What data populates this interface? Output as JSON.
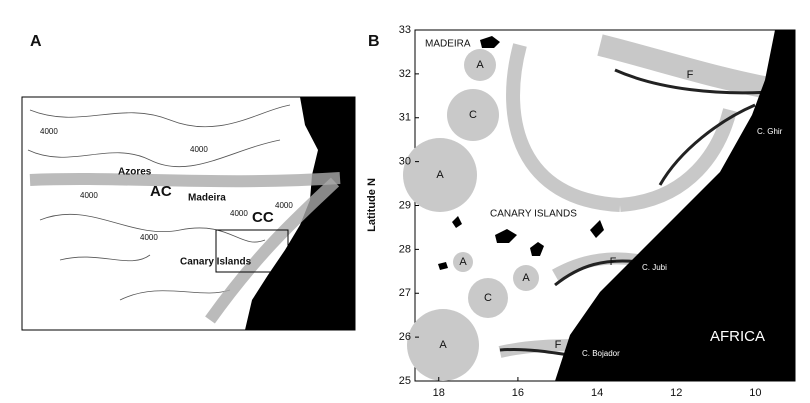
{
  "panel_a": {
    "label": "A",
    "labels": {
      "azores": "Azores",
      "ac": "AC",
      "madeira": "Madeira",
      "cc": "CC",
      "canary": "Canary Islands"
    },
    "contour_labels": [
      "4000",
      "4000",
      "4000",
      "4000",
      "4000",
      "4000"
    ]
  },
  "panel_b": {
    "label": "B",
    "ylabel": "Latitude N",
    "xlim": [
      18.6,
      9.0
    ],
    "ylim": [
      25,
      33
    ],
    "xticks": [
      18,
      16,
      14,
      12,
      10
    ],
    "yticks": [
      25,
      26,
      27,
      28,
      29,
      30,
      31,
      32,
      33
    ],
    "labels": {
      "madeira": "MADEIRA",
      "canary": "CANARY ISLANDS",
      "ghir": "C. Ghir",
      "jubi": "C. Jubi",
      "bojador": "C. Bojador",
      "africa": "AFRICA"
    },
    "eddies": [
      "A",
      "C",
      "A",
      "A",
      "A",
      "C",
      "A"
    ],
    "fronts": [
      "F",
      "F",
      "F"
    ]
  }
}
